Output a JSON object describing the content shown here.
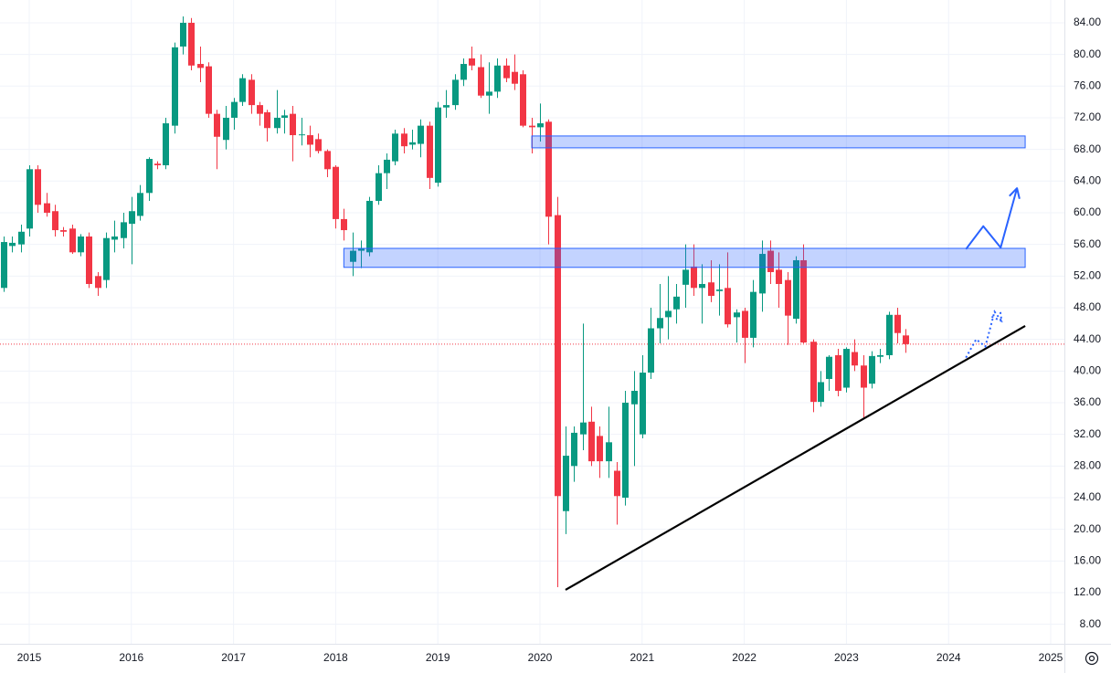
{
  "chart_data": {
    "type": "candlestick",
    "x": [
      2014.75,
      2014.83,
      2014.92,
      2015.0,
      2015.08,
      2015.17,
      2015.25,
      2015.33,
      2015.42,
      2015.5,
      2015.58,
      2015.67,
      2015.75,
      2015.83,
      2015.92,
      2016.0,
      2016.08,
      2016.17,
      2016.25,
      2016.33,
      2016.42,
      2016.5,
      2016.58,
      2016.67,
      2016.75,
      2016.83,
      2016.92,
      2017.0,
      2017.08,
      2017.17,
      2017.25,
      2017.33,
      2017.42,
      2017.5,
      2017.58,
      2017.67,
      2017.75,
      2017.83,
      2017.92,
      2018.0,
      2018.08,
      2018.17,
      2018.25,
      2018.33,
      2018.42,
      2018.5,
      2018.58,
      2018.67,
      2018.75,
      2018.83,
      2018.92,
      2019.0,
      2019.08,
      2019.17,
      2019.25,
      2019.33,
      2019.42,
      2019.5,
      2019.58,
      2019.67,
      2019.75,
      2019.83,
      2019.92,
      2020.0,
      2020.08,
      2020.17,
      2020.25,
      2020.33,
      2020.42,
      2020.5,
      2020.58,
      2020.67,
      2020.75,
      2020.83,
      2020.92,
      2021.0,
      2021.08,
      2021.17,
      2021.25,
      2021.33,
      2021.42,
      2021.5,
      2021.58,
      2021.67,
      2021.75,
      2021.83,
      2021.92,
      2022.0,
      2022.08,
      2022.17,
      2022.25,
      2022.33,
      2022.42,
      2022.5,
      2022.58,
      2022.67,
      2022.75,
      2022.83,
      2022.92,
      2023.0,
      2023.08,
      2023.17,
      2023.25,
      2023.33,
      2023.42,
      2023.5,
      2023.58
    ],
    "open": [
      50.5,
      55.8,
      56,
      58,
      65.5,
      61.2,
      60.2,
      57.8,
      58,
      55,
      57,
      52,
      51.5,
      56.6,
      56.8,
      58.6,
      59.6,
      62.5,
      66.2,
      66,
      71,
      81,
      84,
      78.8,
      78.5,
      72.5,
      69.2,
      72,
      74,
      76.8,
      73.6,
      72.7,
      70.7,
      72,
      72.5,
      69.8,
      69.8,
      69.3,
      67.8,
      65.8,
      59.2,
      53.8,
      55.2,
      55,
      61.5,
      65,
      66.5,
      70,
      68.6,
      68.7,
      71,
      63.8,
      73.3,
      73.6,
      76.8,
      79.5,
      78.4,
      74.8,
      75.3,
      78.6,
      77.8,
      77.5,
      71,
      70.8,
      71.5,
      59.7,
      22.3,
      28,
      32,
      33.6,
      31.8,
      28.6,
      27.4,
      24,
      35.8,
      32,
      39.8,
      45.4,
      46.8,
      47.8,
      50.9,
      53.2,
      50.5,
      51.2,
      50.1,
      50.5,
      46.8,
      47.6,
      44.2,
      49.8,
      55.2,
      52.8,
      51.5,
      46.6,
      54,
      43.7,
      36.1,
      39,
      42,
      37.9,
      42.4,
      40.7,
      38.4,
      41.8,
      42,
      47.1,
      44.5
    ],
    "high": [
      57,
      57,
      58.5,
      66,
      66,
      62.5,
      61,
      58.2,
      58.5,
      57.3,
      57.5,
      52.5,
      57.5,
      59,
      60,
      62,
      63.5,
      67,
      66.5,
      72,
      81.5,
      84.8,
      84.6,
      81,
      79,
      73,
      73.5,
      74.5,
      77.5,
      77.5,
      74,
      73,
      75.5,
      73,
      73.5,
      72,
      71,
      70,
      68,
      66,
      60.5,
      57.5,
      56.5,
      62,
      66,
      67.5,
      70.5,
      70.7,
      70.5,
      71.8,
      71.5,
      74,
      75.5,
      77.5,
      79.5,
      81,
      80,
      79,
      79.5,
      79.5,
      80,
      78,
      72,
      73.8,
      71.8,
      62,
      33,
      33,
      46,
      35.5,
      33,
      35.5,
      28.5,
      37.5,
      40,
      42,
      48,
      51,
      52,
      51,
      56,
      56,
      53.5,
      54,
      53.5,
      55,
      47.8,
      48,
      51.5,
      56.5,
      56.5,
      55,
      52.5,
      54.5,
      56,
      44,
      40,
      42,
      42.8,
      43,
      44,
      42,
      42.5,
      42.8,
      47.5,
      48,
      45.3
    ],
    "low": [
      50,
      55,
      55,
      57,
      60,
      59.5,
      57,
      57,
      54.8,
      54.5,
      50.5,
      49.5,
      50.5,
      55,
      55.5,
      53.5,
      59,
      61.5,
      65.5,
      65.5,
      70,
      80,
      78,
      76.5,
      72,
      65.5,
      68,
      70.5,
      73.5,
      72.5,
      71,
      69,
      70,
      70,
      66.5,
      68.5,
      67,
      67.5,
      64.5,
      58,
      56.5,
      52,
      53,
      54.5,
      61,
      63,
      66,
      67.5,
      68,
      67,
      63,
      63.3,
      72,
      73,
      76,
      78,
      74.5,
      72.5,
      74.5,
      76.5,
      75.5,
      70.8,
      67.5,
      69,
      56,
      12.7,
      19.4,
      26,
      30,
      28,
      26.5,
      26.5,
      20.6,
      23,
      28,
      31.5,
      39,
      43.5,
      44,
      46,
      48,
      49.5,
      46,
      48.7,
      47,
      45.5,
      43.6,
      41,
      43,
      47.5,
      51,
      48,
      43.3,
      46,
      43.5,
      34.8,
      35.5,
      37.5,
      36.8,
      37.3,
      40,
      34,
      37.8,
      41,
      41.5,
      43.5,
      42.3
    ],
    "close": [
      56.3,
      56.2,
      57.6,
      65.5,
      61,
      60,
      57.8,
      57.6,
      55,
      57,
      51,
      50.5,
      56.8,
      57,
      58.8,
      60.2,
      62.5,
      66.8,
      66,
      71.3,
      80.9,
      84,
      78.6,
      78.3,
      72.5,
      69.6,
      72,
      74,
      77,
      73.6,
      72.5,
      70.7,
      72,
      72.3,
      69.8,
      69.9,
      68.6,
      67.8,
      65.5,
      59.2,
      57.8,
      55.2,
      55.5,
      61.5,
      65,
      66.7,
      70,
      68.4,
      68.9,
      71,
      64.4,
      73.3,
      73.6,
      76.8,
      78.8,
      78.6,
      74.8,
      75.3,
      78.6,
      77,
      76.3,
      71,
      70.8,
      71.3,
      59.5,
      24.2,
      29.3,
      32.2,
      33.5,
      28.6,
      28.6,
      31,
      24.2,
      36,
      37.5,
      39.8,
      45.4,
      46.7,
      47.6,
      49.4,
      52.8,
      50.5,
      51,
      49.5,
      50.3,
      45.9,
      47.4,
      44.2,
      50,
      54.8,
      52.5,
      51,
      47,
      54,
      43.6,
      36.1,
      38.6,
      41.8,
      37.5,
      42.8,
      40.7,
      37.9,
      41.9,
      42,
      47.1,
      44.8,
      43.4
    ],
    "up_color": "#089981",
    "down_color": "#f23645",
    "xlim": [
      2014.714,
      2025.134
    ],
    "ylim": [
      5.54,
      86.88
    ],
    "xticks": [
      2015,
      2016,
      2017,
      2018,
      2019,
      2020,
      2021,
      2022,
      2023,
      2024,
      2025
    ],
    "yticks": [
      {
        "value": 8,
        "label": "8.00"
      },
      {
        "value": 12,
        "label": "12.00"
      },
      {
        "value": 16,
        "label": "16.00"
      },
      {
        "value": 20,
        "label": "20.00"
      },
      {
        "value": 24,
        "label": "24.00"
      },
      {
        "value": 28,
        "label": "28.00"
      },
      {
        "value": 32,
        "label": "32.00"
      },
      {
        "value": 36,
        "label": "36.00"
      },
      {
        "value": 40,
        "label": "40.00"
      },
      {
        "value": 44,
        "label": "44.00"
      },
      {
        "value": 48,
        "label": "48.00"
      },
      {
        "value": 52,
        "label": "52.00"
      },
      {
        "value": 56,
        "label": "56.00"
      },
      {
        "value": 60,
        "label": "60.00"
      },
      {
        "value": 64,
        "label": "64.00"
      },
      {
        "value": 68,
        "label": "68.00"
      },
      {
        "value": 72,
        "label": "72.00"
      },
      {
        "value": 76,
        "label": "76.00"
      },
      {
        "value": 80,
        "label": "80.00"
      },
      {
        "value": 84,
        "label": "84.00"
      }
    ],
    "grid": true,
    "last_price_line": true,
    "drawings": {
      "zones": [
        {
          "x": [
            2019.92,
            2024.75
          ],
          "y": [
            68.2,
            69.7
          ]
        },
        {
          "x": [
            2018.08,
            2024.75
          ],
          "y": [
            53.1,
            55.5
          ]
        }
      ],
      "trendline": {
        "x": [
          2020.25,
          2024.75
        ],
        "y": [
          12.35,
          45.7
        ]
      },
      "arrow": {
        "x": [
          2024.17,
          2024.34,
          2024.51,
          2024.67
        ],
        "y": [
          55.4,
          58.3,
          55.6,
          63.1
        ]
      },
      "dotted_arrow": {
        "x": [
          2024.17,
          2024.27,
          2024.36,
          2024.45,
          2024.52
        ],
        "y": [
          41.7,
          44.0,
          43.1,
          47.5,
          46.3
        ]
      }
    }
  }
}
